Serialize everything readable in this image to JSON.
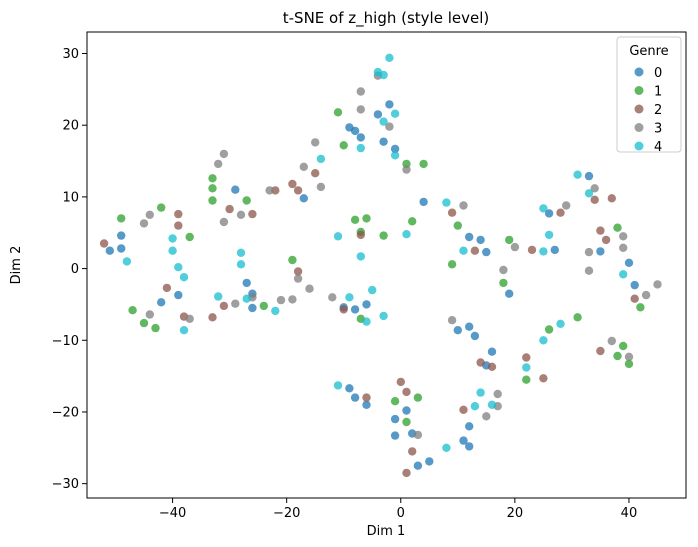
{
  "chart_data": {
    "type": "scatter",
    "title": "t-SNE of z_high (style level)",
    "xlabel": "Dim 1",
    "ylabel": "Dim 2",
    "xlim": [
      -55,
      50
    ],
    "ylim": [
      -32,
      33
    ],
    "xticks": [
      -40,
      -20,
      0,
      20,
      40
    ],
    "yticks": [
      -30,
      -20,
      -10,
      0,
      10,
      20,
      30
    ],
    "grid": false,
    "legend": {
      "title": "Genre",
      "placement": "top-right"
    },
    "series": [
      {
        "name": "0",
        "color": "#1f77b4",
        "points": [
          [
            -51,
            2.5
          ],
          [
            -49,
            2.8
          ],
          [
            -49,
            4.6
          ],
          [
            -42,
            -4.7
          ],
          [
            -39,
            -3.7
          ],
          [
            -29,
            11
          ],
          [
            -27,
            -2
          ],
          [
            -26,
            -3.5
          ],
          [
            -26,
            -5.5
          ],
          [
            -17,
            9.8
          ],
          [
            -9,
            19.7
          ],
          [
            -8,
            19.2
          ],
          [
            -7,
            18.3
          ],
          [
            -4,
            21.5
          ],
          [
            -3,
            17.7
          ],
          [
            -2,
            22.9
          ],
          [
            -1,
            16.7
          ],
          [
            4,
            9.3
          ],
          [
            -10,
            -5.4
          ],
          [
            -8,
            -5.7
          ],
          [
            -6,
            -5
          ],
          [
            -9,
            -16.7
          ],
          [
            -8,
            -18
          ],
          [
            -6,
            -19
          ],
          [
            -1,
            -21
          ],
          [
            -1,
            -23.3
          ],
          [
            1,
            -19.8
          ],
          [
            2,
            -23
          ],
          [
            3,
            -27.5
          ],
          [
            5,
            -26.9
          ],
          [
            10,
            -8.6
          ],
          [
            12,
            -8.1
          ],
          [
            13,
            -9.4
          ],
          [
            16,
            -11.6
          ],
          [
            15,
            -13.5
          ],
          [
            11,
            -24
          ],
          [
            12,
            -22
          ],
          [
            12,
            -24.8
          ],
          [
            12,
            4.4
          ],
          [
            14,
            4
          ],
          [
            15,
            2.3
          ],
          [
            19,
            -3.5
          ],
          [
            26,
            7.7
          ],
          [
            27,
            2.6
          ],
          [
            33,
            12.9
          ],
          [
            35,
            2.4
          ],
          [
            40,
            0.8
          ],
          [
            41,
            -2.3
          ]
        ]
      },
      {
        "name": "1",
        "color": "#2ca02c",
        "points": [
          [
            -49,
            7
          ],
          [
            -47,
            -5.8
          ],
          [
            -45,
            -7.6
          ],
          [
            -43,
            -8.3
          ],
          [
            -42,
            8.5
          ],
          [
            -37,
            4.4
          ],
          [
            -33,
            12.6
          ],
          [
            -33,
            11.2
          ],
          [
            -33,
            9.5
          ],
          [
            -27,
            9.5
          ],
          [
            -24,
            -5.2
          ],
          [
            -19,
            1.2
          ],
          [
            -11,
            21.8
          ],
          [
            -10,
            17.2
          ],
          [
            -8,
            6.8
          ],
          [
            -6,
            7
          ],
          [
            -7,
            5.1
          ],
          [
            -3,
            4.6
          ],
          [
            -7,
            -7
          ],
          [
            1,
            14.6
          ],
          [
            2,
            6.6
          ],
          [
            4,
            14.6
          ],
          [
            9,
            0.6
          ],
          [
            10,
            6
          ],
          [
            -1,
            -18.5
          ],
          [
            1,
            -21.4
          ],
          [
            3,
            -18
          ],
          [
            18,
            -2
          ],
          [
            19,
            4
          ],
          [
            22,
            -15.5
          ],
          [
            26,
            -8.5
          ],
          [
            31,
            -6.8
          ],
          [
            38,
            5.7
          ],
          [
            38,
            -12.2
          ],
          [
            39,
            -10.8
          ],
          [
            40,
            -13.3
          ],
          [
            42,
            -5.4
          ]
        ]
      },
      {
        "name": "2",
        "color": "#8c564b",
        "points": [
          [
            -52,
            3.5
          ],
          [
            -41,
            -2.7
          ],
          [
            -39,
            6
          ],
          [
            -39,
            7.6
          ],
          [
            -38,
            -6.7
          ],
          [
            -33,
            -6.8
          ],
          [
            -31,
            -5.2
          ],
          [
            -30,
            8.3
          ],
          [
            -26,
            7.6
          ],
          [
            -22,
            10.9
          ],
          [
            -19,
            11.8
          ],
          [
            -18,
            10.9
          ],
          [
            -18,
            -0.4
          ],
          [
            -15,
            13.3
          ],
          [
            -10,
            -5.7
          ],
          [
            -7,
            4.7
          ],
          [
            -6,
            -18
          ],
          [
            0,
            -15.8
          ],
          [
            1,
            -17.2
          ],
          [
            1,
            -28.5
          ],
          [
            2,
            -25.5
          ],
          [
            9,
            7.8
          ],
          [
            11,
            -19.7
          ],
          [
            13,
            2.5
          ],
          [
            14,
            -13.1
          ],
          [
            16,
            -13.7
          ],
          [
            22,
            -12.4
          ],
          [
            23,
            2.6
          ],
          [
            25,
            -15.3
          ],
          [
            28,
            7.8
          ],
          [
            34,
            9.6
          ],
          [
            35,
            5.3
          ],
          [
            35,
            -11.5
          ],
          [
            36,
            4
          ],
          [
            37,
            9.8
          ],
          [
            41,
            -4.2
          ]
        ]
      },
      {
        "name": "3",
        "color": "#7f7f7f",
        "points": [
          [
            -45,
            6.3
          ],
          [
            -44,
            7.5
          ],
          [
            -44,
            -6.4
          ],
          [
            -37,
            -7
          ],
          [
            -32,
            14.6
          ],
          [
            -31,
            16
          ],
          [
            -31,
            6.5
          ],
          [
            -29,
            -4.9
          ],
          [
            -28,
            7.5
          ],
          [
            -26,
            -4
          ],
          [
            -23,
            10.9
          ],
          [
            -21,
            -4.4
          ],
          [
            -19,
            -4.3
          ],
          [
            -18,
            -1.4
          ],
          [
            -16,
            -2.8
          ],
          [
            -17,
            14.2
          ],
          [
            -15,
            17.6
          ],
          [
            -14,
            11.4
          ],
          [
            -12,
            -4
          ],
          [
            -7,
            22.2
          ],
          [
            -7,
            24.7
          ],
          [
            -4,
            26.9
          ],
          [
            -2,
            19.8
          ],
          [
            1,
            13.8
          ],
          [
            3,
            -23.2
          ],
          [
            9,
            -7.2
          ],
          [
            11,
            8.8
          ],
          [
            15,
            -20.6
          ],
          [
            17,
            -17.5
          ],
          [
            17,
            -19.2
          ],
          [
            18,
            -0.2
          ],
          [
            20,
            3
          ],
          [
            29,
            8.8
          ],
          [
            33,
            2.3
          ],
          [
            33,
            -0.3
          ],
          [
            34,
            11.2
          ],
          [
            37,
            -10.1
          ],
          [
            39,
            4.5
          ],
          [
            39,
            2.9
          ],
          [
            40,
            -12.3
          ],
          [
            43,
            -3.7
          ],
          [
            45,
            -2.2
          ]
        ]
      },
      {
        "name": "4",
        "color": "#17becf",
        "points": [
          [
            -48,
            1
          ],
          [
            -40,
            4.2
          ],
          [
            -40,
            2.5
          ],
          [
            -39,
            0.2
          ],
          [
            -38,
            -1.2
          ],
          [
            -38,
            -8.6
          ],
          [
            -32,
            -3.9
          ],
          [
            -28,
            2.2
          ],
          [
            -28,
            0.6
          ],
          [
            -27,
            -4.2
          ],
          [
            -22,
            -5.9
          ],
          [
            -14,
            15.3
          ],
          [
            -11,
            4.5
          ],
          [
            -11,
            -16.3
          ],
          [
            -9,
            -4
          ],
          [
            -7,
            16.8
          ],
          [
            -7,
            1.7
          ],
          [
            -6,
            -7.4
          ],
          [
            -5,
            -3
          ],
          [
            -4,
            27.4
          ],
          [
            -3,
            27
          ],
          [
            -3,
            20.5
          ],
          [
            -2,
            29.4
          ],
          [
            -1,
            15.8
          ],
          [
            -1,
            21.6
          ],
          [
            -3,
            -6.6
          ],
          [
            1,
            4.8
          ],
          [
            8,
            9.2
          ],
          [
            8,
            -25
          ],
          [
            11,
            2.5
          ],
          [
            13,
            -19.2
          ],
          [
            14,
            -17.3
          ],
          [
            16,
            -19
          ],
          [
            22,
            -13.8
          ],
          [
            25,
            2.4
          ],
          [
            25,
            8.4
          ],
          [
            25,
            -10
          ],
          [
            26,
            4.7
          ],
          [
            28,
            -7.7
          ],
          [
            31,
            13.1
          ],
          [
            33,
            10.5
          ],
          [
            39,
            -0.8
          ]
        ]
      }
    ]
  }
}
